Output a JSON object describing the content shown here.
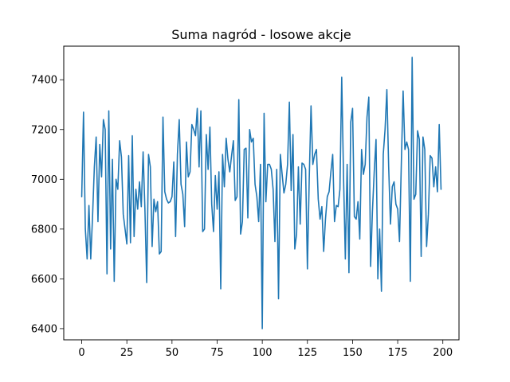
{
  "chart_data": {
    "type": "line",
    "title": "Suma nagród - losowe akcje",
    "xlabel": "",
    "ylabel": "",
    "xlim": [
      -9.95,
      208.95
    ],
    "ylim": [
      6355,
      7535
    ],
    "xticks": [
      0,
      25,
      50,
      75,
      100,
      125,
      150,
      175,
      200
    ],
    "yticks": [
      6400,
      6600,
      6800,
      7000,
      7200,
      7400
    ],
    "grid": false,
    "series": [
      {
        "color": "#1f77b4",
        "x": [
          0,
          1,
          2,
          3,
          4,
          5,
          6,
          7,
          8,
          9,
          10,
          11,
          12,
          13,
          14,
          15,
          16,
          17,
          18,
          19,
          20,
          21,
          22,
          23,
          24,
          25,
          26,
          27,
          28,
          29,
          30,
          31,
          32,
          33,
          34,
          35,
          36,
          37,
          38,
          39,
          40,
          41,
          42,
          43,
          44,
          45,
          46,
          47,
          48,
          49,
          50,
          51,
          52,
          53,
          54,
          55,
          56,
          57,
          58,
          59,
          60,
          61,
          62,
          63,
          64,
          65,
          66,
          67,
          68,
          69,
          70,
          71,
          72,
          73,
          74,
          75,
          76,
          77,
          78,
          79,
          80,
          81,
          82,
          83,
          84,
          85,
          86,
          87,
          88,
          89,
          90,
          91,
          92,
          93,
          94,
          95,
          96,
          97,
          98,
          99,
          100,
          101,
          102,
          103,
          104,
          105,
          106,
          107,
          108,
          109,
          110,
          111,
          112,
          113,
          114,
          115,
          116,
          117,
          118,
          119,
          120,
          121,
          122,
          123,
          124,
          125,
          126,
          127,
          128,
          129,
          130,
          131,
          132,
          133,
          134,
          135,
          136,
          137,
          138,
          139,
          140,
          141,
          142,
          143,
          144,
          145,
          146,
          147,
          148,
          149,
          150,
          151,
          152,
          153,
          154,
          155,
          156,
          157,
          158,
          159,
          160,
          161,
          162,
          163,
          164,
          165,
          166,
          167,
          168,
          169,
          170,
          171,
          172,
          173,
          174,
          175,
          176,
          177,
          178,
          179,
          180,
          181,
          182,
          183,
          184,
          185,
          186,
          187,
          188,
          189,
          190,
          191,
          192,
          193,
          194,
          195,
          196,
          197,
          198,
          199
        ],
        "values": [
          6930,
          7270,
          6800,
          6680,
          6895,
          6680,
          6850,
          7050,
          7170,
          6830,
          7140,
          7010,
          7240,
          7200,
          6620,
          7275,
          6720,
          7080,
          6590,
          7000,
          6960,
          7155,
          7090,
          6860,
          6800,
          6740,
          7095,
          6745,
          7175,
          6770,
          6960,
          6880,
          6990,
          6890,
          7110,
          6880,
          6585,
          7100,
          7050,
          6730,
          6920,
          6870,
          6910,
          6700,
          6710,
          7250,
          6950,
          6920,
          6905,
          6910,
          6930,
          7070,
          6770,
          7100,
          7240,
          6980,
          6940,
          6810,
          7150,
          7010,
          7030,
          7220,
          7200,
          7175,
          7285,
          7050,
          7275,
          6790,
          6800,
          7180,
          7040,
          7210,
          6900,
          6790,
          7015,
          6880,
          7030,
          6560,
          7100,
          6970,
          7165,
          7080,
          7030,
          7095,
          7155,
          6915,
          6930,
          7320,
          6780,
          6830,
          7120,
          7125,
          6845,
          7200,
          7150,
          7165,
          6980,
          6930,
          6830,
          7060,
          6400,
          7265,
          6910,
          7060,
          7060,
          7040,
          6960,
          6750,
          7040,
          6520,
          7100,
          7020,
          6945,
          6980,
          7060,
          7310,
          6955,
          7180,
          6720,
          6780,
          7050,
          6820,
          7065,
          7060,
          7040,
          6640,
          7000,
          7295,
          7060,
          7100,
          7120,
          6920,
          6840,
          6890,
          6710,
          6840,
          6930,
          6950,
          7030,
          7100,
          6830,
          6895,
          6890,
          6960,
          7410,
          7010,
          6680,
          7060,
          6625,
          7230,
          7285,
          6850,
          6840,
          6910,
          6760,
          7120,
          7020,
          7060,
          7250,
          7330,
          6650,
          6870,
          7030,
          7160,
          6600,
          6800,
          6550,
          7100,
          7200,
          7360,
          7050,
          6820,
          6970,
          6990,
          6900,
          6880,
          6750,
          7060,
          7355,
          7120,
          7150,
          7120,
          6590,
          7490,
          6920,
          6940,
          7195,
          7160,
          6690,
          7170,
          7120,
          6730,
          6860,
          7095,
          7085,
          6970,
          7050,
          6950,
          7220,
          6960
        ]
      }
    ]
  }
}
